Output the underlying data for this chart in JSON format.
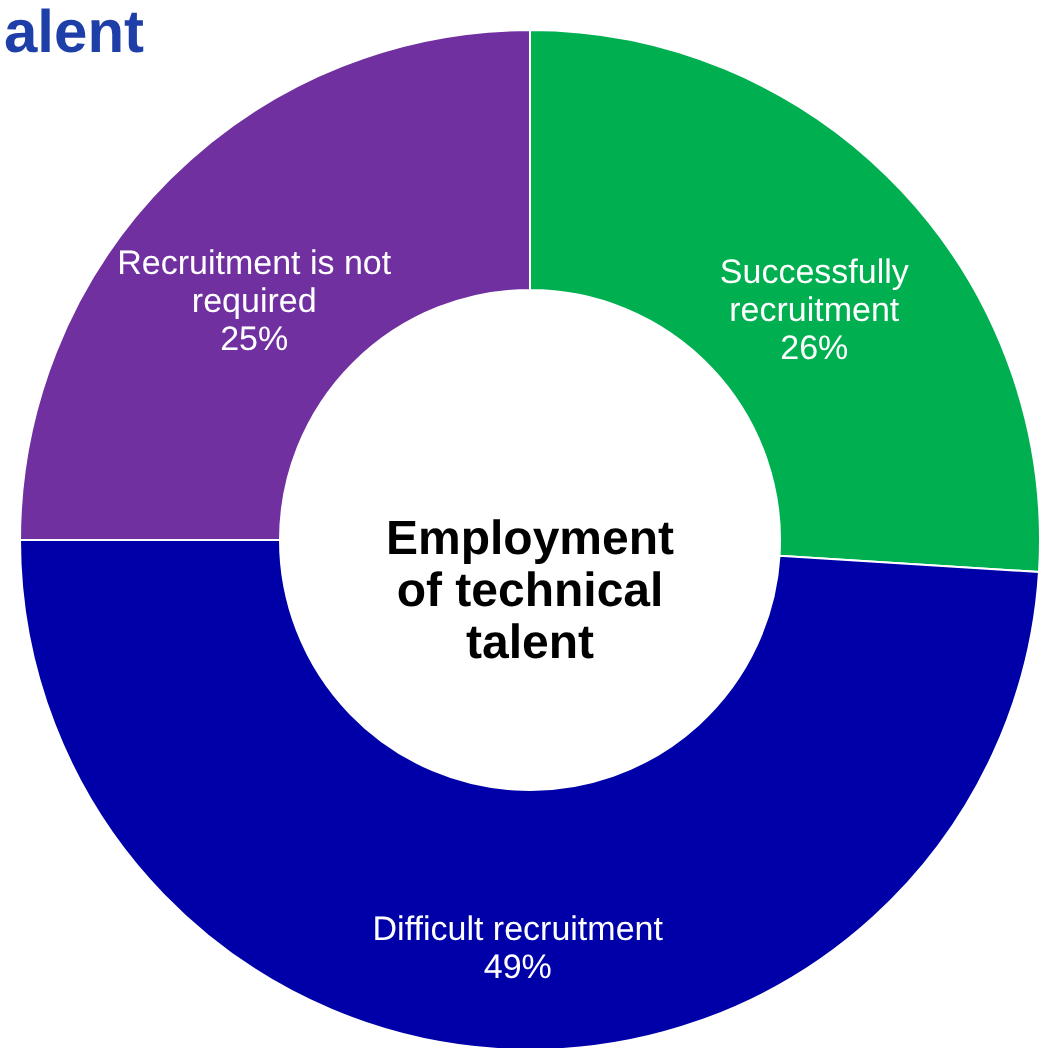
{
  "chart_data": {
    "type": "donut",
    "title": "alent",
    "categories": [
      "Successfully recruitment",
      "Difficult recruitment",
      "Recruitment is not required"
    ],
    "values": [
      26,
      49,
      25
    ],
    "colors": [
      "#00b050",
      "#0000a8",
      "#7030a0"
    ],
    "value_labels": [
      "26%",
      "49%",
      "25%"
    ],
    "annotations": [
      "Employment of technical talent"
    ]
  }
}
